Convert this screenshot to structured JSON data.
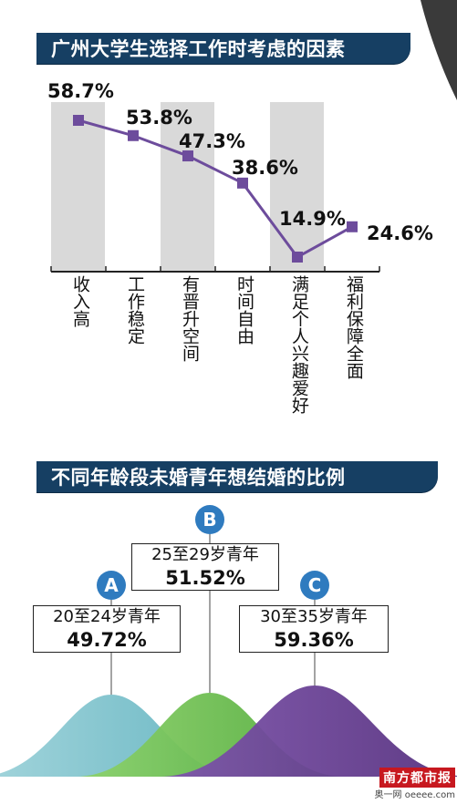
{
  "chart_data": [
    {
      "type": "line",
      "title": "广州大学生选择工作时考虑的因素",
      "categories": [
        "收入高",
        "工作稳定",
        "有晋升空间",
        "时间自由",
        "满足个人兴趣爱好",
        "福利保障全面"
      ],
      "values": [
        58.7,
        53.8,
        47.3,
        38.6,
        14.9,
        24.6
      ],
      "value_labels": [
        "58.7%",
        "53.8%",
        "47.3%",
        "38.6%",
        "14.9%",
        "24.6%"
      ],
      "unit": "%",
      "ylim": [
        0,
        100
      ],
      "grid": false,
      "colors": {
        "line": "#6d4c9c",
        "marker": "#6d4c9c",
        "band": "#d9d9d9"
      }
    },
    {
      "type": "area",
      "title": "不同年龄段未婚青年想结婚的比例",
      "groups": [
        {
          "marker": "A",
          "age": "20至24岁青年",
          "value": 49.72,
          "label": "49.72%",
          "color": "#7fc4cf"
        },
        {
          "marker": "B",
          "age": "25至29岁青年",
          "value": 51.52,
          "label": "51.52%",
          "color": "#6cc04a"
        },
        {
          "marker": "C",
          "age": "30至35岁青年",
          "value": 59.36,
          "label": "59.36%",
          "color": "#6a3f93"
        }
      ]
    }
  ],
  "colors": {
    "banner": "#163f63",
    "marker_circle": "#2f7bbf",
    "brand": "#c7181f"
  },
  "brand": {
    "name": "南方都市报",
    "sub": "奥一网 oeeee.com"
  }
}
